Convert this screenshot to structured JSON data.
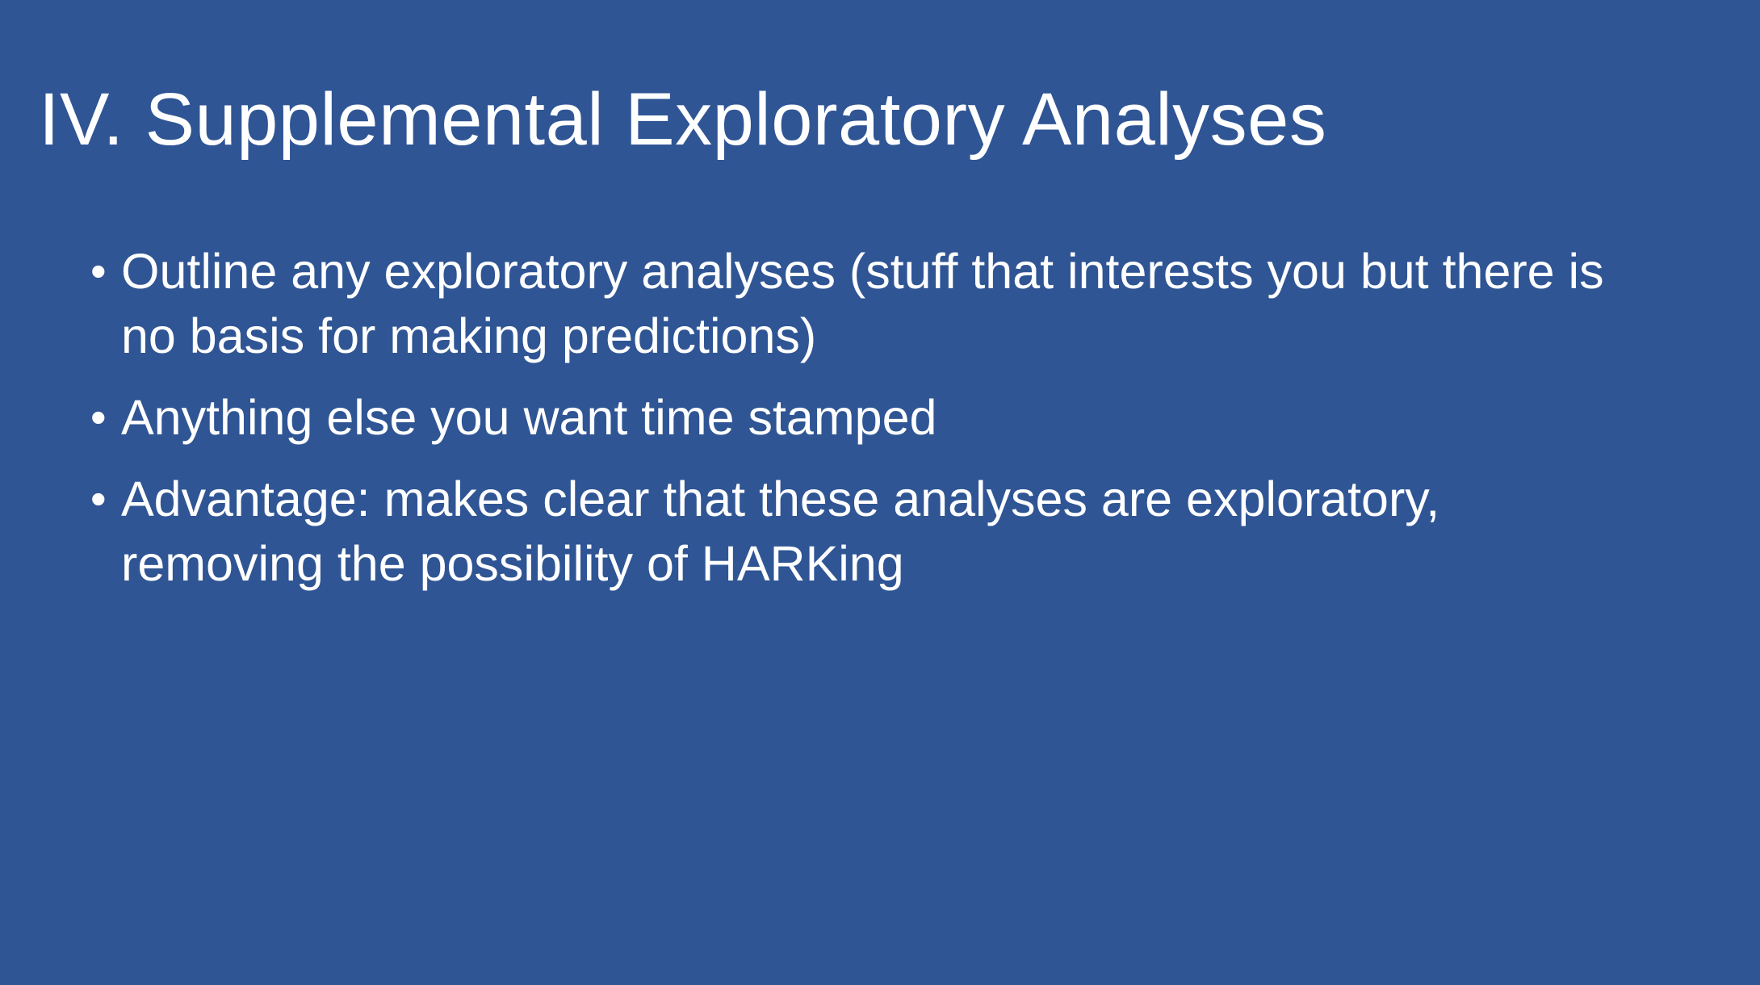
{
  "slide": {
    "title": "IV. Supplemental Exploratory Analyses",
    "bullets": [
      "Outline any exploratory analyses (stuff that interests you but there is no basis for making predictions)",
      "Anything else you want time stamped",
      "Advantage: makes clear that these analyses are exploratory, removing the possibility of HARKing"
    ],
    "bullet_glyph": "•"
  },
  "colors": {
    "background": "#2f5594",
    "text": "#ffffff"
  }
}
